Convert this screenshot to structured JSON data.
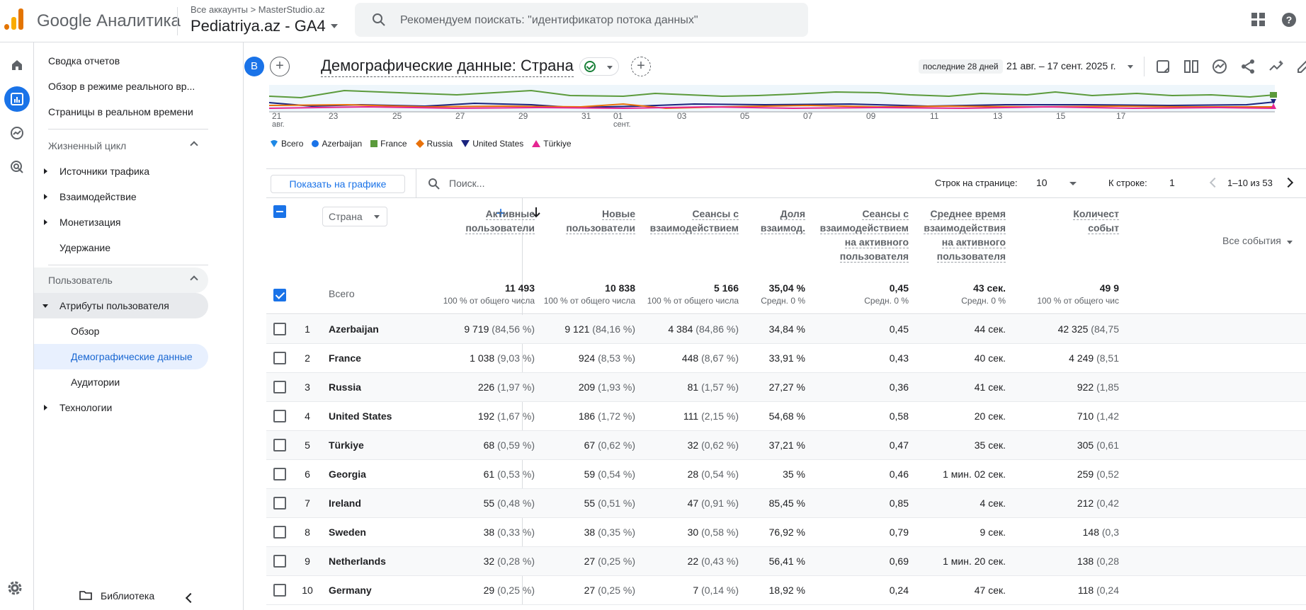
{
  "app": {
    "title": "Google Аналитика",
    "account_path": "Все аккаунты > MasterStudio.az",
    "property": "Pediatriya.az - GA4"
  },
  "search": {
    "placeholder": "Рекомендуем поискать: \"идентификатор потока данных\""
  },
  "nav": {
    "items": [
      {
        "label": "Сводка отчетов"
      },
      {
        "label": "Обзор в режиме реального вр..."
      },
      {
        "label": "Страницы в реальном времени"
      }
    ],
    "lifecycle": {
      "label": "Жизненный цикл",
      "items": [
        "Источники трафика",
        "Взаимодействие",
        "Монетизация",
        "Удержание"
      ]
    },
    "user": {
      "label": "Пользователь",
      "attributes": "Атрибуты пользователя",
      "sub": [
        "Обзор",
        "Демографические данные",
        "Аудитории"
      ],
      "tech": "Технологии"
    },
    "library": "Библиотека"
  },
  "report": {
    "avatar": "B",
    "title": "Демографические данные: Страна",
    "date_preset": "последние 28 дней",
    "date_range": "21 авг. – 17 сент. 2025 г."
  },
  "chart_data": {
    "type": "line",
    "x_ticks": [
      "21\nавг.",
      "23",
      "25",
      "27",
      "29",
      "31",
      "01\nсент.",
      "03",
      "05",
      "07",
      "09",
      "11",
      "13",
      "15",
      "17"
    ],
    "legend": [
      "Всего",
      "Azerbaijan",
      "France",
      "Russia",
      "United States",
      "Türkiye"
    ],
    "colors": {
      "Всего": "#1e88e5",
      "Azerbaijan": "#1a73e8",
      "France": "#5b9a3b",
      "Russia": "#e8710a",
      "United States": "#1a237e",
      "Türkiye": "#e52592"
    }
  },
  "toolbar": {
    "show_chart": "Показать на графике",
    "search_placeholder": "Поиск...",
    "rows_label": "Строк на странице:",
    "rows_value": "10",
    "goto_label": "К строке:",
    "goto_value": "1",
    "pager": "1–10 из 53"
  },
  "table": {
    "dim_label": "Страна",
    "columns": [
      [
        "Активные",
        "пользователи"
      ],
      [
        "Новые",
        "пользователи"
      ],
      [
        "Сеансы с",
        "взаимодействием"
      ],
      [
        "Доля",
        "взаимод."
      ],
      [
        "Сеансы с",
        "взаимодействием",
        "на активного",
        "пользователя"
      ],
      [
        "Среднее время",
        "взаимодействия",
        "на активного",
        "пользователя"
      ],
      [
        "Количест",
        "событ"
      ]
    ],
    "events_select": "Все события",
    "totals_label": "Всего",
    "totals": [
      {
        "v": "11 493",
        "s": "100 % от общего числа"
      },
      {
        "v": "10 838",
        "s": "100 % от общего числа"
      },
      {
        "v": "5 166",
        "s": "100 % от общего числа"
      },
      {
        "v": "35,04 %",
        "s": "Средн. 0 %"
      },
      {
        "v": "0,45",
        "s": "Средн. 0 %"
      },
      {
        "v": "43 сек.",
        "s": "Средн. 0 %"
      },
      {
        "v": "49 9",
        "s": "100 % от общего чис"
      }
    ],
    "rows": [
      {
        "i": "1",
        "c": "Azerbaijan",
        "a": "9 719",
        "ap": "(84,56 %)",
        "n": "9 121",
        "np": "(84,16 %)",
        "e": "4 384",
        "ep": "(84,86 %)",
        "r": "34,84 %",
        "spu": "0,45",
        "t": "44 сек.",
        "ev": "42 325",
        "evp": "(84,75"
      },
      {
        "i": "2",
        "c": "France",
        "a": "1 038",
        "ap": "(9,03 %)",
        "n": "924",
        "np": "(8,53 %)",
        "e": "448",
        "ep": "(8,67 %)",
        "r": "33,91 %",
        "spu": "0,43",
        "t": "40 сек.",
        "ev": "4 249",
        "evp": "(8,51"
      },
      {
        "i": "3",
        "c": "Russia",
        "a": "226",
        "ap": "(1,97 %)",
        "n": "209",
        "np": "(1,93 %)",
        "e": "81",
        "ep": "(1,57 %)",
        "r": "27,27 %",
        "spu": "0,36",
        "t": "41 сек.",
        "ev": "922",
        "evp": "(1,85"
      },
      {
        "i": "4",
        "c": "United States",
        "a": "192",
        "ap": "(1,67 %)",
        "n": "186",
        "np": "(1,72 %)",
        "e": "111",
        "ep": "(2,15 %)",
        "r": "54,68 %",
        "spu": "0,58",
        "t": "20 сек.",
        "ev": "710",
        "evp": "(1,42"
      },
      {
        "i": "5",
        "c": "Türkiye",
        "a": "68",
        "ap": "(0,59 %)",
        "n": "67",
        "np": "(0,62 %)",
        "e": "32",
        "ep": "(0,62 %)",
        "r": "37,21 %",
        "spu": "0,47",
        "t": "35 сек.",
        "ev": "305",
        "evp": "(0,61"
      },
      {
        "i": "6",
        "c": "Georgia",
        "a": "61",
        "ap": "(0,53 %)",
        "n": "59",
        "np": "(0,54 %)",
        "e": "28",
        "ep": "(0,54 %)",
        "r": "35 %",
        "spu": "0,46",
        "t": "1 мин. 02 сек.",
        "ev": "259",
        "evp": "(0,52"
      },
      {
        "i": "7",
        "c": "Ireland",
        "a": "55",
        "ap": "(0,48 %)",
        "n": "55",
        "np": "(0,51 %)",
        "e": "47",
        "ep": "(0,91 %)",
        "r": "85,45 %",
        "spu": "0,85",
        "t": "4 сек.",
        "ev": "212",
        "evp": "(0,42"
      },
      {
        "i": "8",
        "c": "Sweden",
        "a": "38",
        "ap": "(0,33 %)",
        "n": "38",
        "np": "(0,35 %)",
        "e": "30",
        "ep": "(0,58 %)",
        "r": "76,92 %",
        "spu": "0,79",
        "t": "9 сек.",
        "ev": "148",
        "evp": "(0,3"
      },
      {
        "i": "9",
        "c": "Netherlands",
        "a": "32",
        "ap": "(0,28 %)",
        "n": "27",
        "np": "(0,25 %)",
        "e": "22",
        "ep": "(0,43 %)",
        "r": "56,41 %",
        "spu": "0,69",
        "t": "1 мин. 20 сек.",
        "ev": "138",
        "evp": "(0,28"
      },
      {
        "i": "10",
        "c": "Germany",
        "a": "29",
        "ap": "(0,25 %)",
        "n": "27",
        "np": "(0,25 %)",
        "e": "7",
        "ep": "(0,14 %)",
        "r": "18,92 %",
        "spu": "0,24",
        "t": "47 сек.",
        "ev": "118",
        "evp": "(0,24"
      }
    ]
  }
}
